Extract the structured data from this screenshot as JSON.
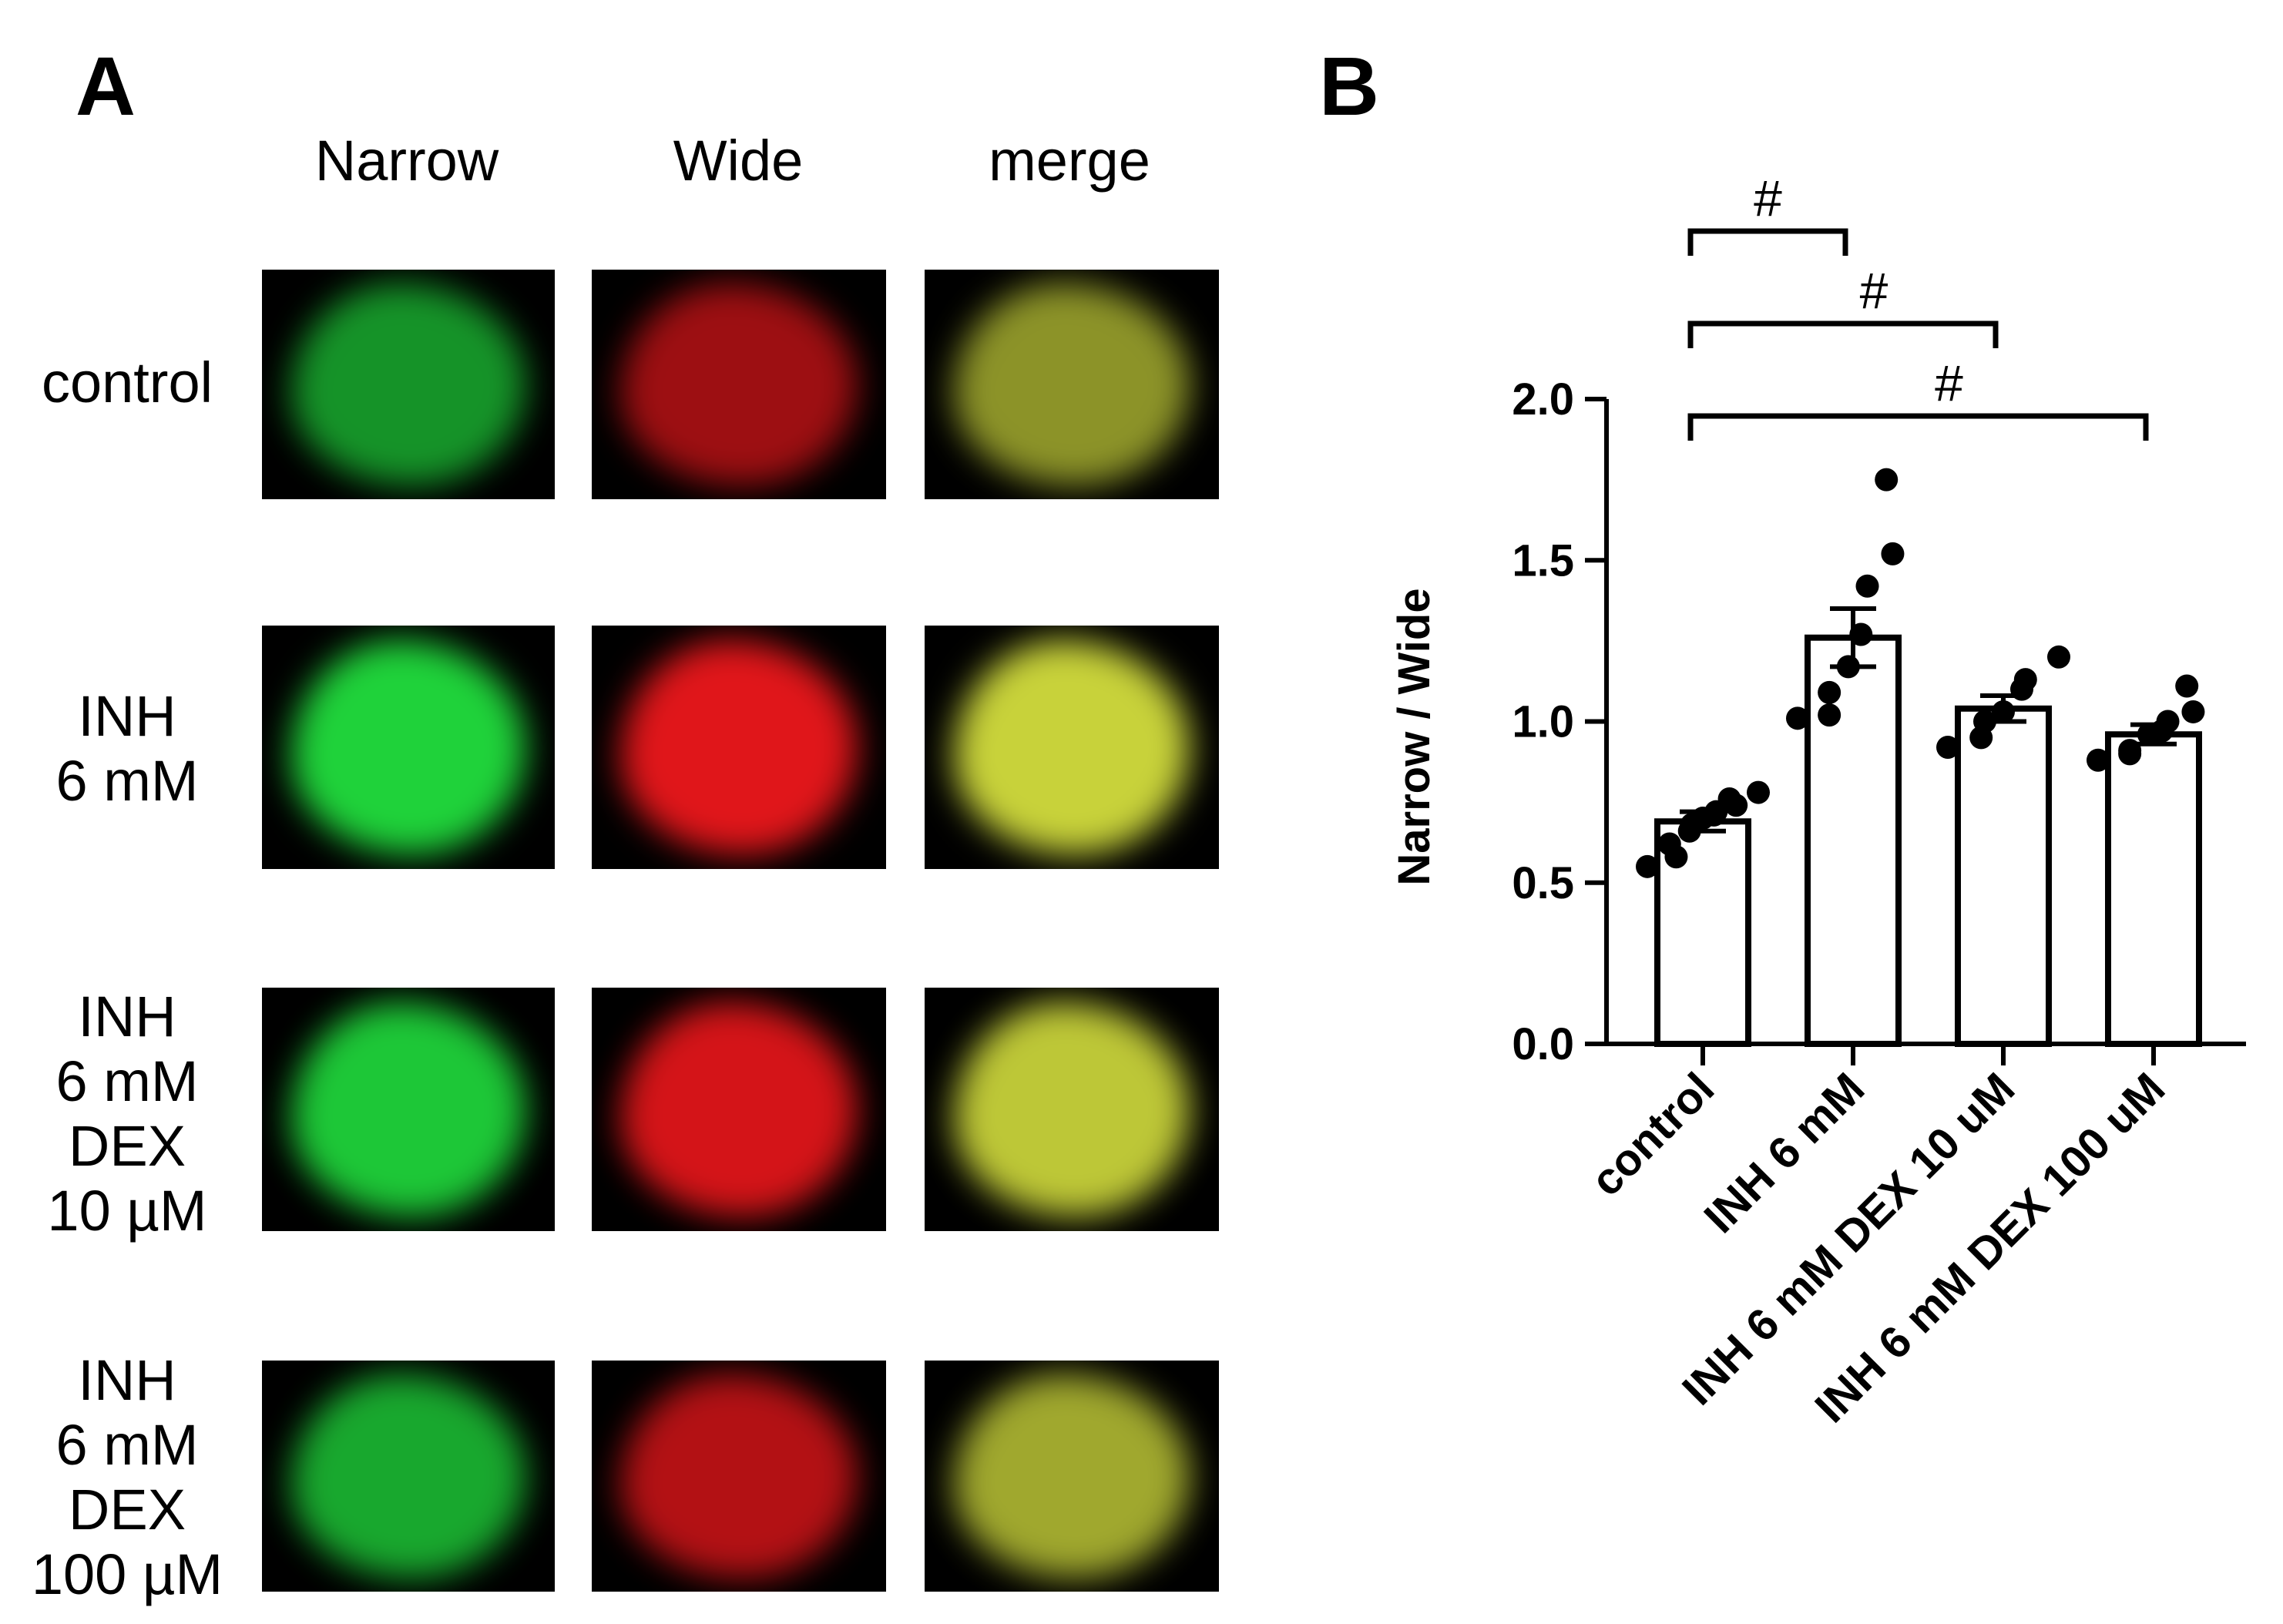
{
  "panel_a": {
    "letter": "A",
    "columns": [
      "Narrow",
      "Wide",
      "merge"
    ],
    "rows": [
      {
        "label": "control",
        "intensity": 0.7
      },
      {
        "label": "INH\n6 mM",
        "intensity": 1.0
      },
      {
        "label": "INH\n6 mM\nDEX\n10 µM",
        "intensity": 0.95
      },
      {
        "label": "INH\n6 mM\nDEX\n100 µM",
        "intensity": 0.8
      }
    ],
    "colors": {
      "narrow": "#1fd23a",
      "wide": "#e0161a",
      "merge": "#c8d23a"
    }
  },
  "panel_b": {
    "letter": "B",
    "significance_symbol": "#"
  },
  "chart_data": {
    "type": "bar",
    "categories": [
      "control",
      "INH 6 mM",
      "INH 6 mM DEX 10 uM",
      "INH 6 mM DEX 100 uM"
    ],
    "values": [
      0.69,
      1.26,
      1.04,
      0.96
    ],
    "sem": [
      0.03,
      0.09,
      0.04,
      0.03
    ],
    "points": [
      [
        0.55,
        0.58,
        0.62,
        0.66,
        0.68,
        0.7,
        0.71,
        0.72,
        0.74,
        0.76,
        0.78
      ],
      [
        1.01,
        1.02,
        1.09,
        1.17,
        1.27,
        1.42,
        1.52,
        1.75
      ],
      [
        0.92,
        0.95,
        1.0,
        1.03,
        1.1,
        1.13,
        1.2
      ],
      [
        0.88,
        0.9,
        0.91,
        0.96,
        0.97,
        1.0,
        1.03,
        1.11
      ]
    ],
    "ylabel": "Narrow / Wide",
    "xlabel": "",
    "ylim": [
      0,
      2.0
    ],
    "yticks": [
      "0.0",
      "0.5",
      "1.0",
      "1.5",
      "2.0"
    ],
    "comparisons": [
      {
        "from": 0,
        "to": 1,
        "label": "#"
      },
      {
        "from": 0,
        "to": 2,
        "label": "#"
      },
      {
        "from": 0,
        "to": 3,
        "label": "#"
      }
    ],
    "grid": false,
    "legend": "none"
  }
}
